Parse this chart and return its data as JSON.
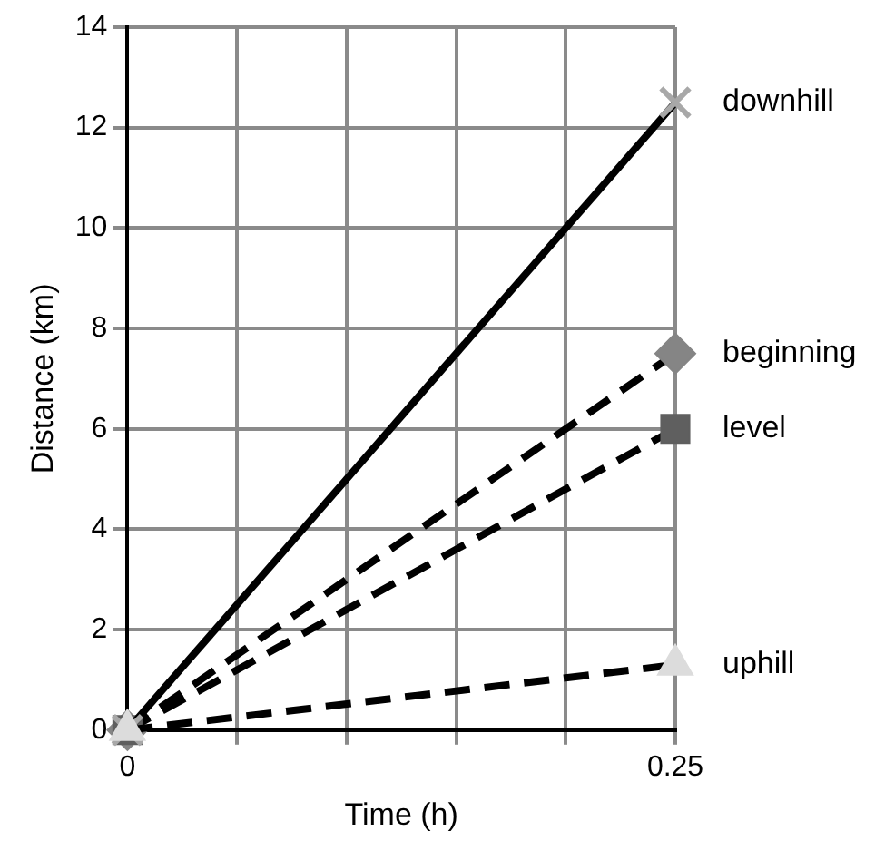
{
  "chart_data": {
    "type": "line",
    "xlabel": "Time (h)",
    "ylabel": "Distance (km)",
    "x": [
      0,
      0.25
    ],
    "series": [
      {
        "name": "downhill",
        "color": "#a8a8a8",
        "values": [
          0,
          12.5
        ],
        "marker": "cross",
        "line_style": "solid"
      },
      {
        "name": "beginning",
        "color": "#858585",
        "values": [
          0,
          7.5
        ],
        "marker": "diamond",
        "line_style": "dashed"
      },
      {
        "name": "level",
        "color": "#5f5f5f",
        "values": [
          0,
          6
        ],
        "marker": "square",
        "line_style": "dashed"
      },
      {
        "name": "uphill",
        "color": "#dcdcdc",
        "values": [
          0,
          1.3
        ],
        "marker": "triangle",
        "line_style": "dashed"
      }
    ],
    "xlim": [
      0,
      0.25
    ],
    "xticks": [
      0,
      {
        "value": 0.05,
        "label": null
      },
      {
        "value": 0.1,
        "label": null
      },
      {
        "value": 0.15,
        "label": null
      },
      {
        "value": 0.2,
        "label": null
      },
      {
        "value": 0.25,
        "label": "0.25"
      }
    ],
    "ylim": [
      0,
      14
    ],
    "yticks": [
      0,
      2,
      4,
      6,
      8,
      10,
      12,
      14
    ],
    "grid": true,
    "legend": false
  }
}
